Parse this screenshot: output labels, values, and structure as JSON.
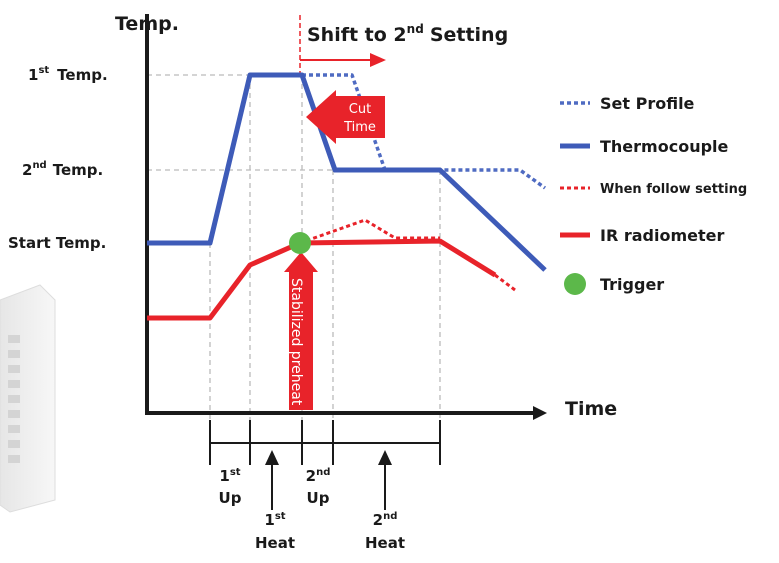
{
  "axes": {
    "y_title": "Temp.",
    "x_title": "Time",
    "y_labels": [
      {
        "main": "1",
        "sup": "st",
        "rest": "Temp."
      },
      {
        "main": "2",
        "sup": "nd",
        "rest": "Temp."
      },
      {
        "rest": "Start Temp."
      }
    ]
  },
  "annotations": {
    "shift": {
      "main": "Shift to 2",
      "sup": "nd",
      "rest": "Setting"
    },
    "cut_time": [
      "Cut",
      "Time"
    ],
    "stabilized": "Stabilized preheat"
  },
  "legend": [
    "Set Profile",
    "Thermocouple",
    "When follow setting",
    "IR radiometer",
    "Trigger"
  ],
  "phases": [
    {
      "main": "1",
      "sup": "st",
      "rest": "Up"
    },
    {
      "main": "1",
      "sup": "st",
      "rest": "Heat"
    },
    {
      "main": "2",
      "sup": "nd",
      "rest": "Up"
    },
    {
      "main": "2",
      "sup": "nd",
      "rest": "Heat"
    }
  ]
}
